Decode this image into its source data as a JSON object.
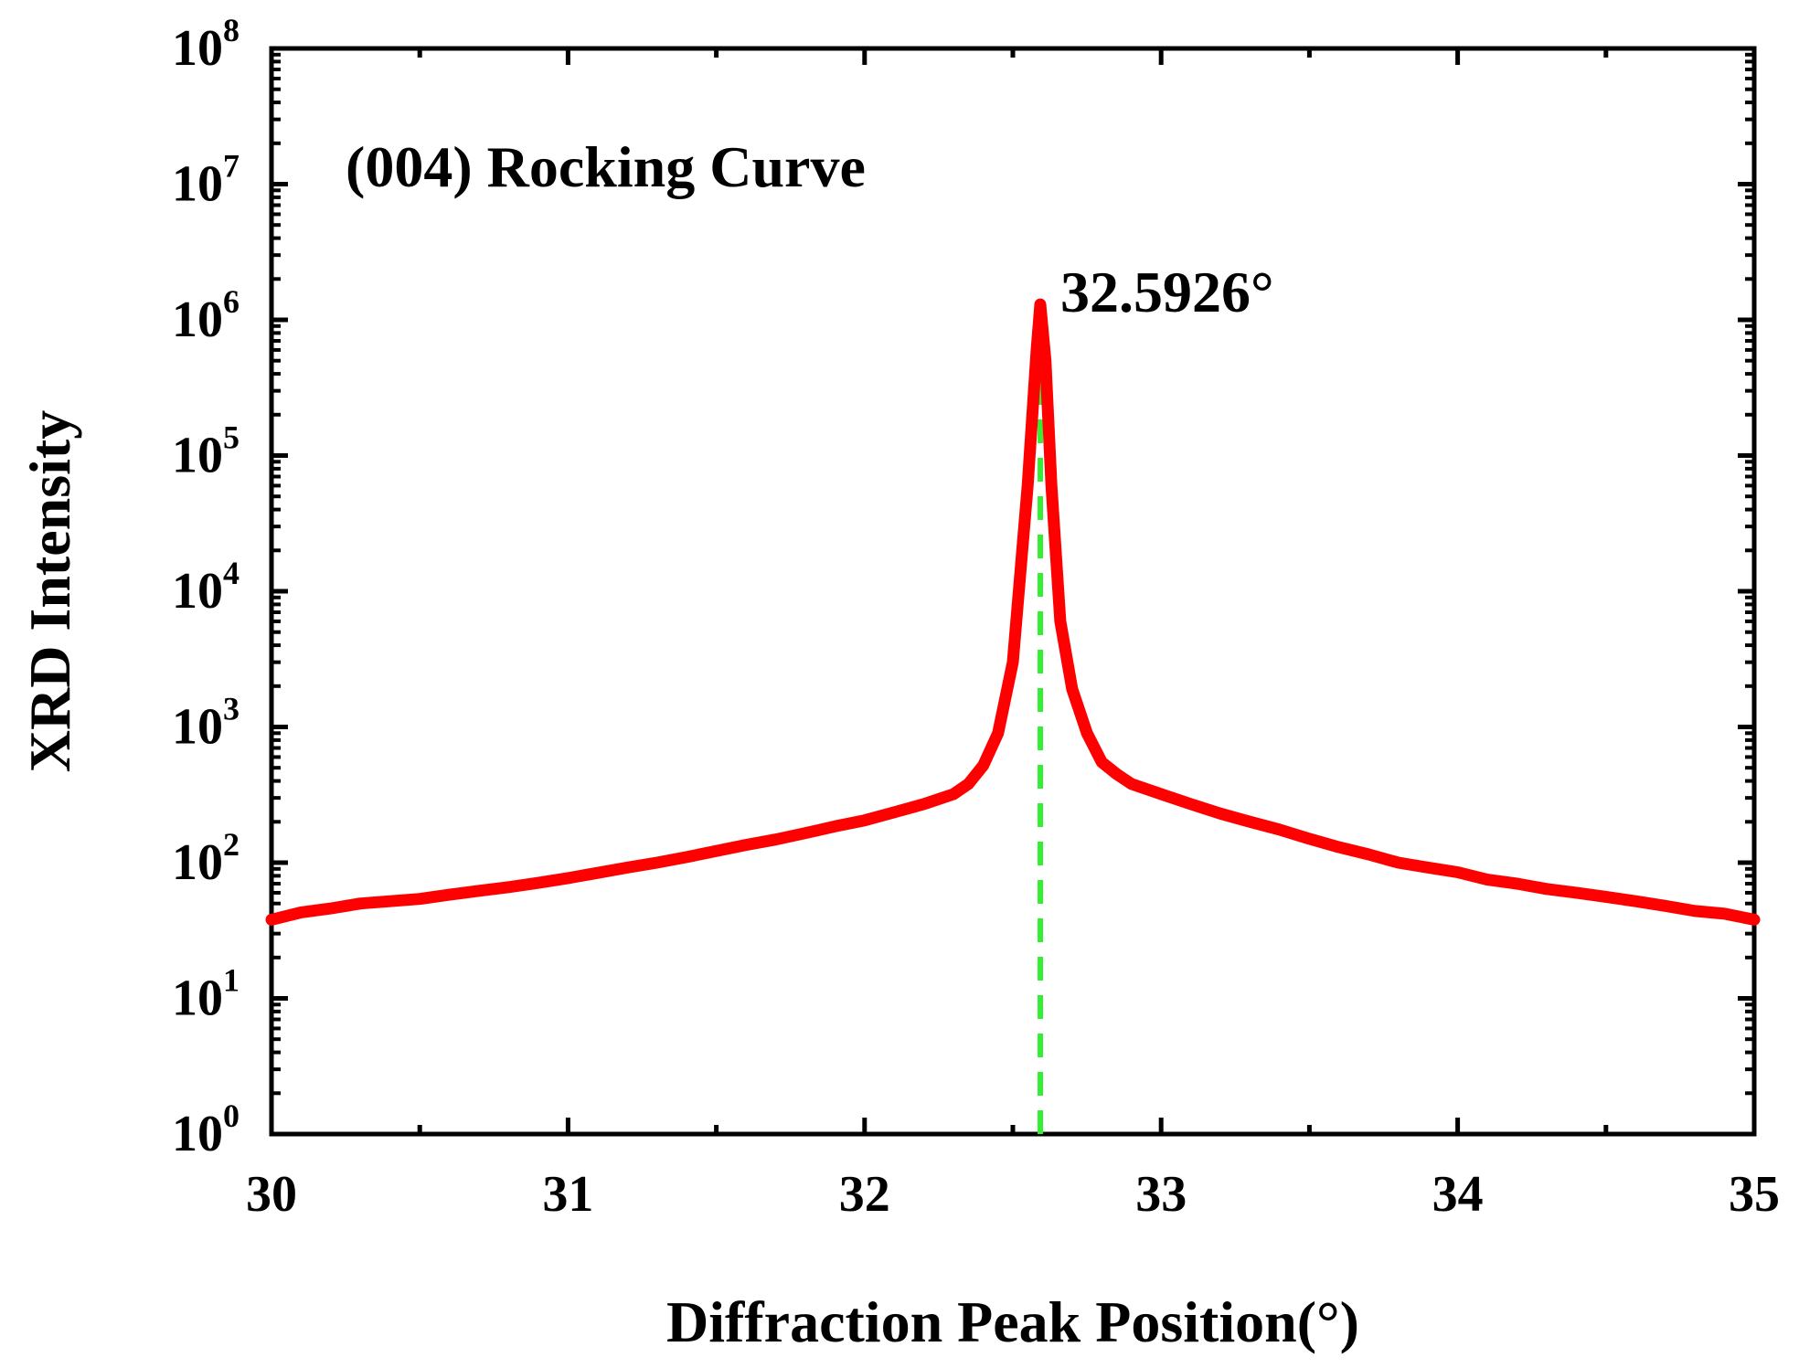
{
  "chart_data": {
    "type": "line",
    "title": "",
    "annotation": "(004) Rocking Curve",
    "xlabel": "Diffraction Peak Position(°)",
    "ylabel": "XRD Intensity",
    "xlim": [
      30,
      35
    ],
    "ylim_log10": [
      0,
      8
    ],
    "yscale": "log",
    "x_ticks": [
      "30",
      "31",
      "32",
      "33",
      "34",
      "35"
    ],
    "y_ticks": [
      {
        "base": "10",
        "exp": "0"
      },
      {
        "base": "10",
        "exp": "1"
      },
      {
        "base": "10",
        "exp": "2"
      },
      {
        "base": "10",
        "exp": "3"
      },
      {
        "base": "10",
        "exp": "4"
      },
      {
        "base": "10",
        "exp": "5"
      },
      {
        "base": "10",
        "exp": "6"
      },
      {
        "base": "10",
        "exp": "7"
      },
      {
        "base": "10",
        "exp": "8"
      }
    ],
    "peak": {
      "x": 32.5926,
      "label": "32.5926°"
    },
    "colors": {
      "curve": "#ff0000",
      "peak_line": "#33ee33",
      "axis": "#000000"
    },
    "series": [
      {
        "name": "(004) Rocking Curve",
        "x": [
          30.0,
          30.1,
          30.2,
          30.3,
          30.4,
          30.5,
          30.6,
          30.7,
          30.8,
          30.9,
          31.0,
          31.1,
          31.2,
          31.3,
          31.4,
          31.5,
          31.6,
          31.7,
          31.8,
          31.9,
          32.0,
          32.1,
          32.2,
          32.3,
          32.35,
          32.4,
          32.45,
          32.5,
          32.55,
          32.58,
          32.5926,
          32.61,
          32.63,
          32.66,
          32.7,
          32.75,
          32.8,
          32.85,
          32.9,
          33.0,
          33.1,
          33.2,
          33.3,
          33.4,
          33.5,
          33.6,
          33.7,
          33.8,
          33.9,
          34.0,
          34.1,
          34.2,
          34.3,
          34.4,
          34.5,
          34.6,
          34.7,
          34.8,
          34.9,
          35.0
        ],
        "y": [
          38,
          43,
          46,
          50,
          52,
          54,
          58,
          62,
          66,
          71,
          77,
          84,
          92,
          100,
          110,
          122,
          135,
          148,
          165,
          185,
          205,
          235,
          270,
          320,
          380,
          520,
          900,
          3000,
          60000,
          600000,
          1300000,
          500000,
          60000,
          6000,
          1900,
          900,
          550,
          450,
          380,
          320,
          270,
          230,
          200,
          175,
          150,
          130,
          115,
          100,
          92,
          85,
          75,
          70,
          64,
          60,
          56,
          52,
          48,
          44,
          42,
          38
        ]
      }
    ]
  }
}
